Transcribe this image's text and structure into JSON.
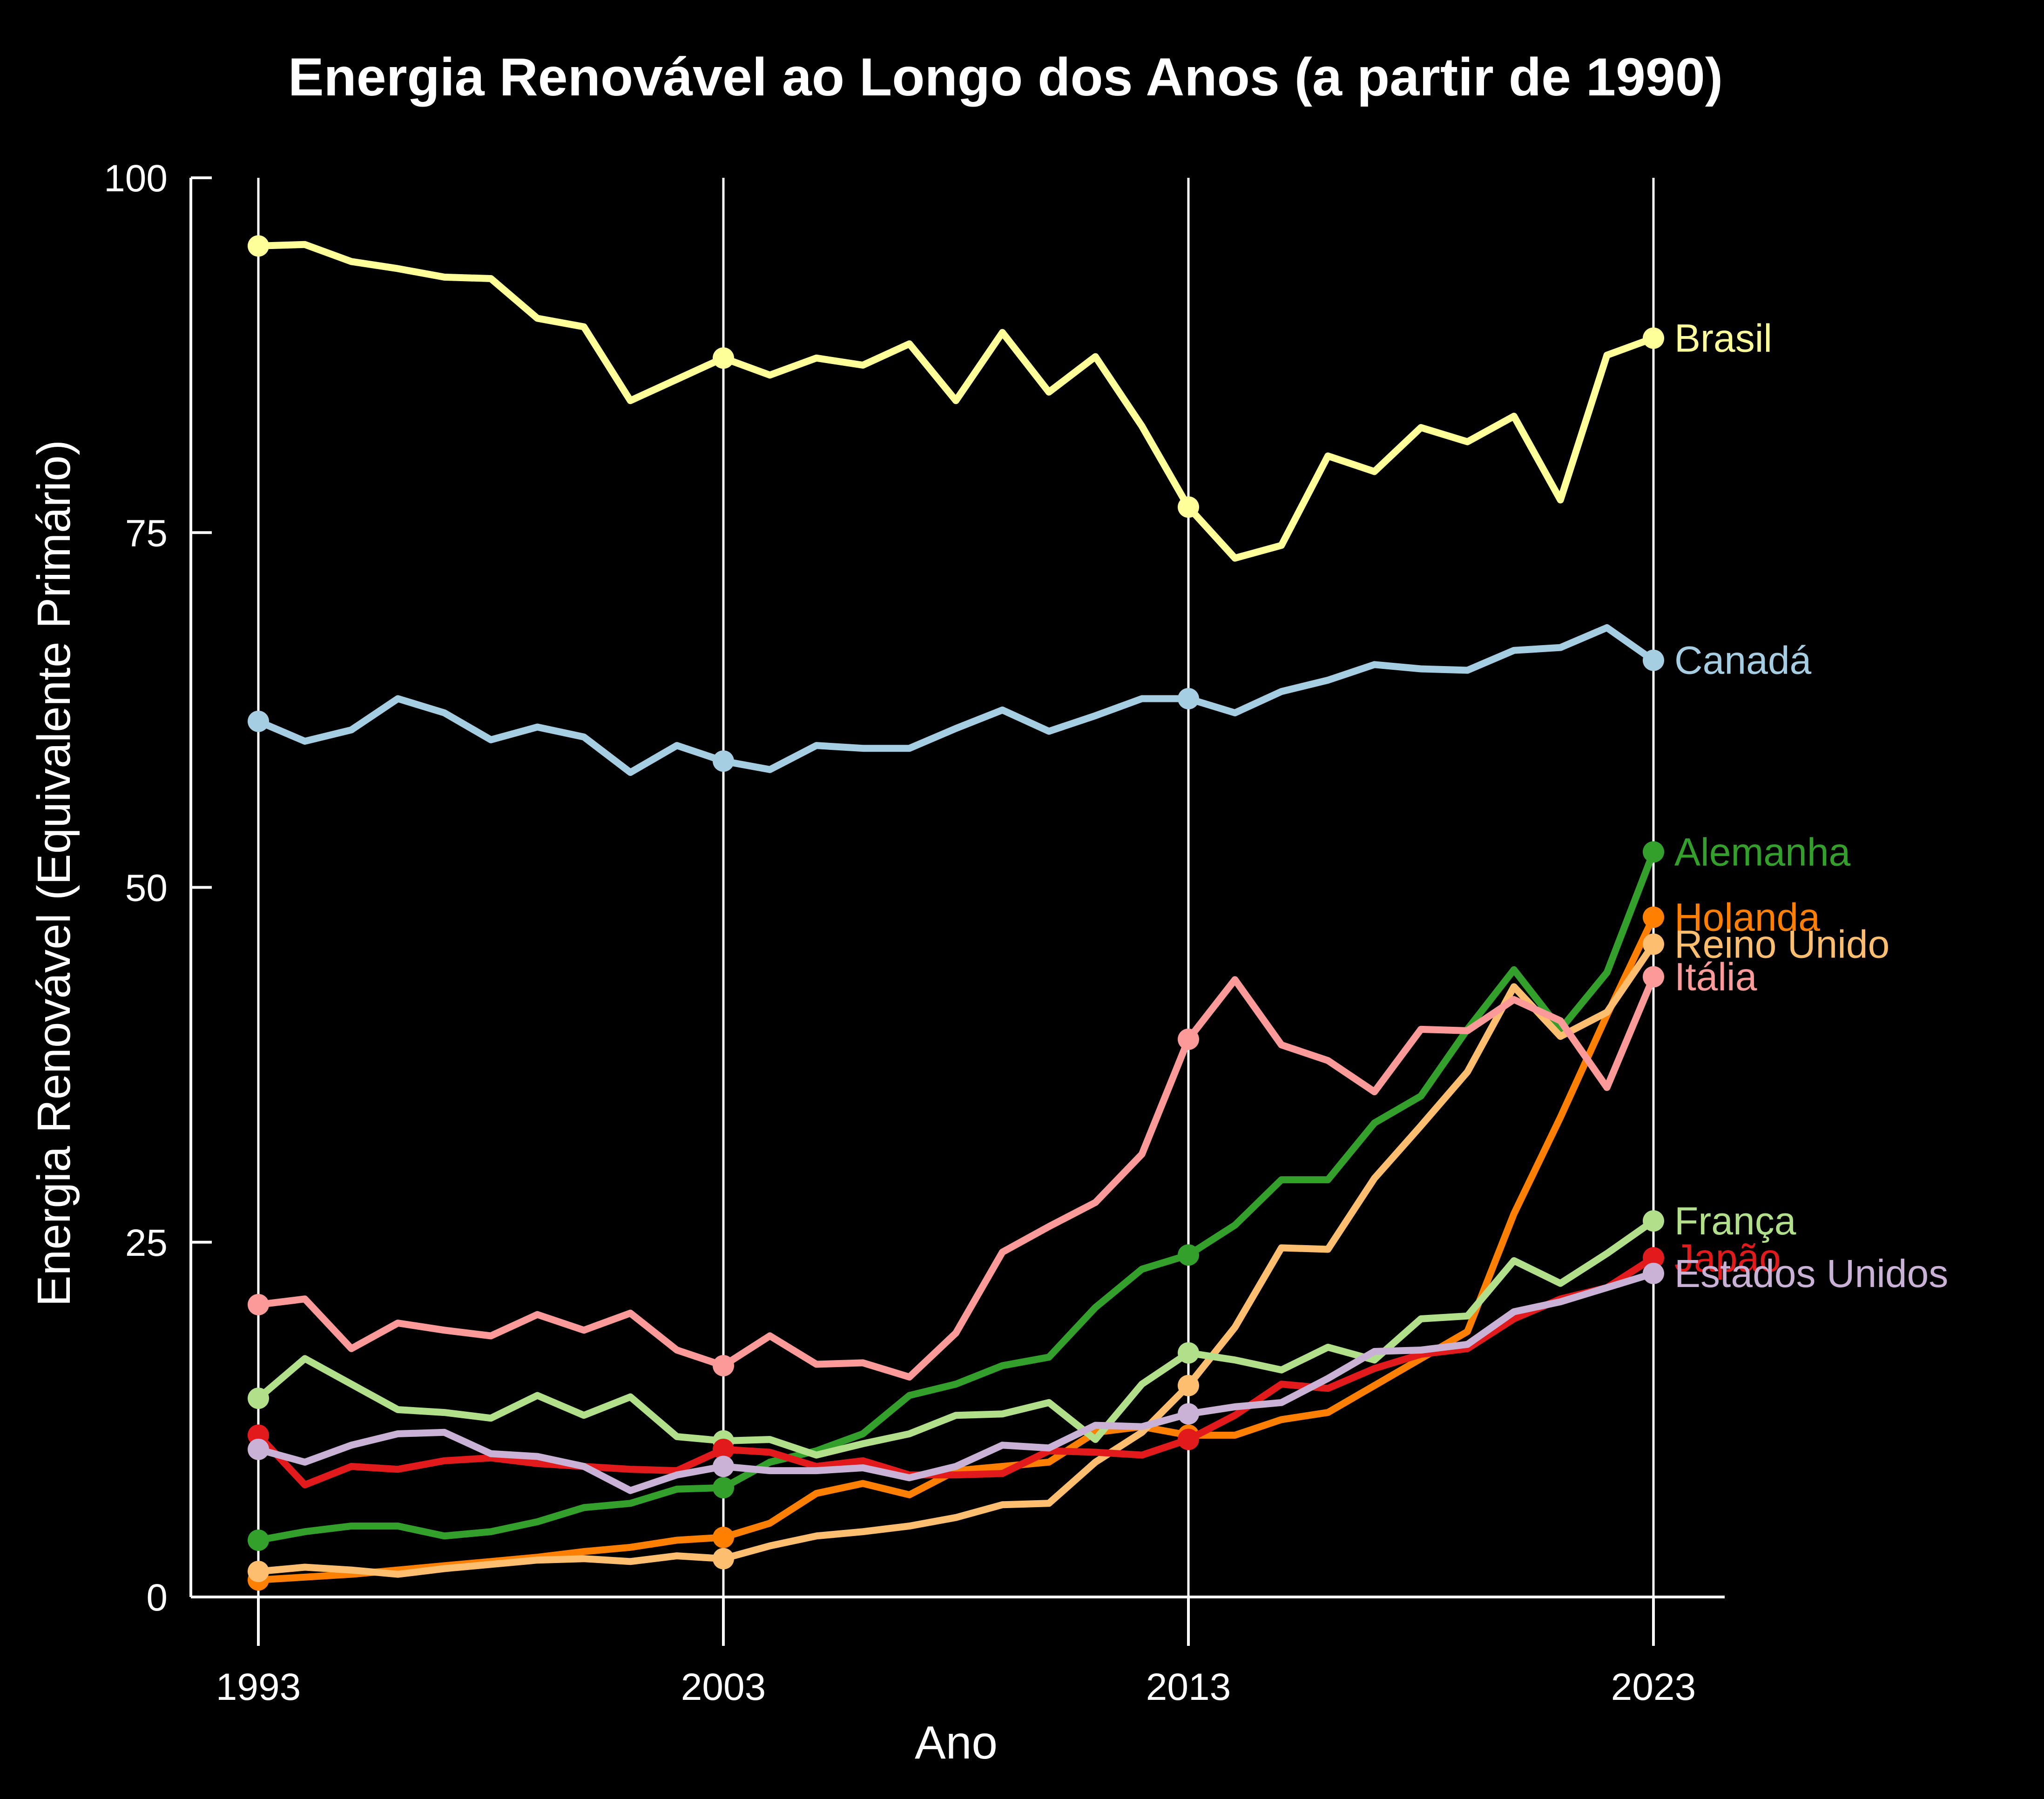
{
  "chart_data": {
    "type": "line",
    "title": "Energia Renovável ao Longo dos Anos (a partir de 1990)",
    "xlabel": "Ano",
    "ylabel": "Energia Renovável (Equivalente Primário)",
    "xlim": [
      1991.6,
      2024.5
    ],
    "ylim": [
      0,
      100
    ],
    "x_ticks": [
      1993,
      2003,
      2013,
      2023
    ],
    "y_ticks": [
      0,
      25,
      50,
      75,
      100
    ],
    "grid": "vertical lines at x ticks",
    "legend": "direct labels at right end of lines",
    "marker_years": [
      1993,
      2003,
      2013,
      2023
    ],
    "x": [
      1993,
      1994,
      1995,
      1996,
      1997,
      1998,
      1999,
      2000,
      2001,
      2002,
      2003,
      2004,
      2005,
      2006,
      2007,
      2008,
      2009,
      2010,
      2011,
      2012,
      2013,
      2014,
      2015,
      2016,
      2017,
      2018,
      2019,
      2020,
      2021,
      2022,
      2023
    ],
    "series": [
      {
        "name": "Brasil",
        "color": "#ffff99",
        "label_y": 88.7,
        "values": [
          95.2,
          95.3,
          94.1,
          93.6,
          93.0,
          92.9,
          90.1,
          89.5,
          84.3,
          85.8,
          87.3,
          86.1,
          87.3,
          86.8,
          88.3,
          84.3,
          89.1,
          84.9,
          87.4,
          82.5,
          76.8,
          73.2,
          74.1,
          80.4,
          79.3,
          82.4,
          81.4,
          83.2,
          77.3,
          87.5,
          88.7
        ]
      },
      {
        "name": "Canadá",
        "color": "#a6cee3",
        "label_y": 66.0,
        "values": [
          61.7,
          60.3,
          61.1,
          63.3,
          62.3,
          60.4,
          61.3,
          60.6,
          58.1,
          60.0,
          58.9,
          58.3,
          60.0,
          59.8,
          59.8,
          61.2,
          62.5,
          61.0,
          62.1,
          63.3,
          63.3,
          62.3,
          63.8,
          64.6,
          65.7,
          65.4,
          65.3,
          66.7,
          66.9,
          68.3,
          66.0
        ]
      },
      {
        "name": "Alemanha",
        "color": "#33a02c",
        "label_y": 52.5,
        "values": [
          4.0,
          4.6,
          5.0,
          5.0,
          4.3,
          4.6,
          5.3,
          6.3,
          6.6,
          7.6,
          7.7,
          9.5,
          10.3,
          11.5,
          14.2,
          15.0,
          16.3,
          16.9,
          20.4,
          23.1,
          24.1,
          26.2,
          29.4,
          29.4,
          33.4,
          35.3,
          40.0,
          44.2,
          40.0,
          44.0,
          52.5
        ]
      },
      {
        "name": "Holanda",
        "color": "#ff7f00",
        "label_y": 47.9,
        "values": [
          1.2,
          1.4,
          1.6,
          1.9,
          2.2,
          2.5,
          2.8,
          3.2,
          3.5,
          4.0,
          4.2,
          5.2,
          7.3,
          8.0,
          7.2,
          8.9,
          9.2,
          9.5,
          11.6,
          12.0,
          11.4,
          11.4,
          12.5,
          13.0,
          14.9,
          16.8,
          18.7,
          27.0,
          33.8,
          41.0,
          47.9
        ]
      },
      {
        "name": "Reino Unido",
        "color": "#fdbf6f",
        "label_y": 46.0,
        "values": [
          1.8,
          2.1,
          1.9,
          1.6,
          2.0,
          2.3,
          2.6,
          2.7,
          2.5,
          2.9,
          2.7,
          3.6,
          4.3,
          4.6,
          5.0,
          5.6,
          6.5,
          6.6,
          9.5,
          11.6,
          14.9,
          19.0,
          24.6,
          24.5,
          29.5,
          33.2,
          37.0,
          43.0,
          39.5,
          41.2,
          46.0
        ]
      },
      {
        "name": "Itália",
        "color": "#fb9a99",
        "label_y": 43.7,
        "values": [
          20.6,
          21.0,
          17.5,
          19.3,
          18.8,
          18.4,
          19.9,
          18.8,
          20.0,
          17.4,
          16.3,
          18.4,
          16.4,
          16.5,
          15.5,
          18.6,
          24.3,
          26.1,
          27.8,
          31.2,
          39.3,
          43.5,
          38.9,
          37.8,
          35.6,
          40.0,
          39.9,
          42.1,
          40.6,
          35.9,
          43.7
        ]
      },
      {
        "name": "França",
        "color": "#b2df8a",
        "label_y": 26.5,
        "values": [
          14.0,
          16.8,
          15.0,
          13.2,
          13.0,
          12.6,
          14.2,
          12.8,
          14.1,
          11.3,
          11.0,
          11.1,
          10.0,
          10.8,
          11.5,
          12.8,
          12.9,
          13.7,
          11.1,
          15.0,
          17.2,
          16.7,
          16.0,
          17.6,
          16.7,
          19.6,
          19.8,
          23.7,
          22.1,
          24.2,
          26.5
        ]
      },
      {
        "name": "Japão",
        "color": "#e31a1c",
        "label_y": 23.9,
        "values": [
          11.4,
          7.9,
          9.2,
          9.0,
          9.6,
          9.8,
          9.4,
          9.2,
          9.0,
          8.9,
          10.4,
          10.2,
          9.2,
          9.6,
          8.6,
          8.6,
          8.7,
          10.3,
          10.2,
          10.0,
          11.1,
          12.8,
          15.0,
          14.7,
          16.1,
          17.1,
          17.5,
          19.6,
          21.0,
          21.8,
          23.9
        ]
      },
      {
        "name": "Estados Unidos",
        "color": "#cab2d6",
        "label_y": 22.8,
        "values": [
          10.4,
          9.5,
          10.7,
          11.5,
          11.6,
          10.1,
          9.9,
          9.2,
          7.5,
          8.6,
          9.2,
          8.9,
          8.9,
          9.1,
          8.4,
          9.2,
          10.7,
          10.5,
          12.1,
          12.0,
          12.9,
          13.4,
          13.7,
          15.4,
          17.3,
          17.4,
          17.8,
          20.1,
          20.8,
          21.8,
          22.8
        ]
      }
    ]
  }
}
